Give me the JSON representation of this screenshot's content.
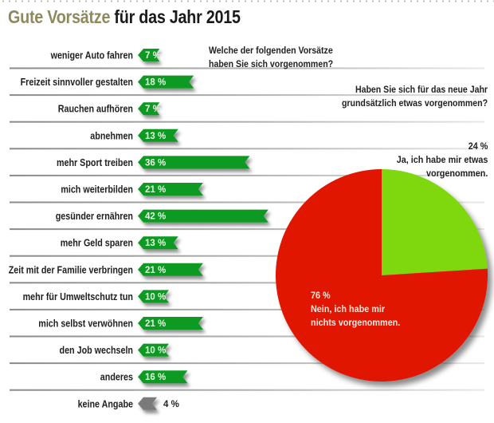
{
  "title": {
    "part1": "Gute Vorsätze",
    "part2": " für das Jahr 2015"
  },
  "colors": {
    "title_accent": "#8f8a5e",
    "bar": "#0a9a22",
    "bar_grey": "#7a7a7a",
    "pie_yes": "#7ed80a",
    "pie_no": "#e01500"
  },
  "chart_data": [
    {
      "type": "bar",
      "orientation": "horizontal",
      "title": "Welche der folgenden Vorsätze haben Sie sich vorgenommen?",
      "title_lines": [
        "Welche der folgenden Vorsätze",
        "haben Sie sich vorgenommen?"
      ],
      "unit": "%",
      "categories": [
        "weniger Auto fahren",
        "Freizeit sinnvoller gestalten",
        "Rauchen aufhören",
        "abnehmen",
        "mehr Sport treiben",
        "mich weiterbilden",
        "gesünder ernähren",
        "mehr Geld sparen",
        "Zeit mit der Familie verbringen",
        "mehr für Umweltschutz tun",
        "mich selbst verwöhnen",
        "den Job wechseln",
        "anderes",
        "keine Angabe"
      ],
      "values": [
        7,
        18,
        7,
        13,
        36,
        21,
        42,
        13,
        21,
        10,
        21,
        10,
        16,
        4
      ],
      "value_labels": [
        "7 %",
        "18 %",
        "7 %",
        "13 %",
        "36 %",
        "21 %",
        "42 %",
        "13 %",
        "21 %",
        "10 %",
        "21 %",
        "10 %",
        "16 %",
        "4 %"
      ],
      "highlight_grey": [
        "keine Angabe"
      ]
    },
    {
      "type": "pie",
      "title": "Haben Sie sich für das neue Jahr grundsätzlich etwas vorgenommen?",
      "title_lines": [
        "Haben Sie sich für das neue Jahr",
        "grundsätzlich etwas vorgenommen?"
      ],
      "slices": [
        {
          "label": "Ja, ich habe mir etwas vorgenommen.",
          "label_lines": [
            "Ja, ich habe mir etwas",
            "vorgenommen."
          ],
          "value": 24,
          "value_label": "24 %",
          "color": "#7ed80a"
        },
        {
          "label": "Nein, ich habe mir nichts vorgenommen.",
          "label_lines": [
            "Nein, ich habe mir",
            "nichts vorgenommen."
          ],
          "value": 76,
          "value_label": "76 %",
          "color": "#e01500"
        }
      ]
    }
  ]
}
